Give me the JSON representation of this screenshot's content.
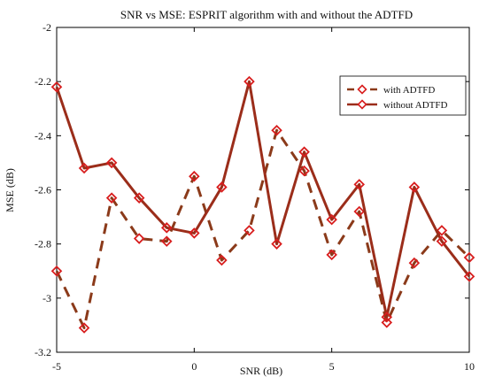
{
  "chart_data": {
    "type": "line",
    "title": "SNR vs MSE: ESPRIT algorithm with and without the ADTFD",
    "xlabel": "SNR (dB)",
    "ylabel": "MSE (dB)",
    "xlim": [
      -5,
      10
    ],
    "ylim": [
      -3.2,
      -2.0
    ],
    "xticks": [
      -5,
      0,
      5,
      10
    ],
    "xtick_labels": [
      "-5",
      "0",
      "5",
      "10"
    ],
    "yticks": [
      -3.2,
      -3.0,
      -2.8,
      -2.6,
      -2.4,
      -2.2,
      -2.0
    ],
    "ytick_labels": [
      "-3.2",
      "-3",
      "-2.8",
      "-2.6",
      "-2.4",
      "-2.2",
      "-2"
    ],
    "grid": false,
    "legend_position": "top-right",
    "x": [
      -5,
      -4,
      -3,
      -2,
      -1,
      0,
      1,
      2,
      3,
      4,
      5,
      6,
      7,
      8,
      9,
      10
    ],
    "series": [
      {
        "name": "with ADTFD",
        "line_style": "dashed",
        "marker": "diamond",
        "color": "#8B3A1A",
        "marker_color": "#d81e1e",
        "values": [
          -2.9,
          -3.11,
          -2.63,
          -2.78,
          -2.79,
          -2.55,
          -2.86,
          -2.75,
          -2.38,
          -2.53,
          -2.84,
          -2.68,
          -3.09,
          -2.87,
          -2.75,
          -2.85
        ]
      },
      {
        "name": "without ADTFD",
        "line_style": "solid",
        "marker": "diamond",
        "color": "#9B2D1A",
        "marker_color": "#d81e1e",
        "values": [
          -2.22,
          -2.52,
          -2.5,
          -2.63,
          -2.74,
          -2.76,
          -2.59,
          -2.2,
          -2.8,
          -2.46,
          -2.71,
          -2.58,
          -3.07,
          -2.59,
          -2.79,
          -2.92
        ]
      }
    ]
  }
}
